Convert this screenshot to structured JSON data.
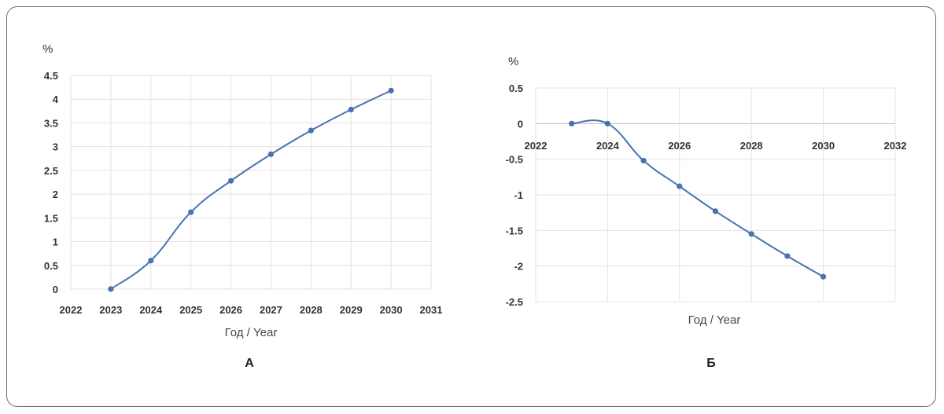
{
  "chart_data": [
    {
      "type": "line",
      "panel_label": "А",
      "ylabel": "%",
      "xlabel": "Год / Year",
      "xlim": [
        2022,
        2031
      ],
      "ylim": [
        0,
        4.5
      ],
      "x_ticks": [
        "2022",
        "2023",
        "2024",
        "2025",
        "2026",
        "2027",
        "2028",
        "2029",
        "2030",
        "2031"
      ],
      "y_ticks": [
        "4.5",
        "4",
        "3.5",
        "3",
        "2.5",
        "2",
        "1.5",
        "1",
        "0.5",
        "0"
      ],
      "grid": true,
      "line_color": "#4a72b0",
      "series": [
        {
          "x": [
            2023,
            2024,
            2025,
            2026,
            2027,
            2028,
            2029,
            2030
          ],
          "values": [
            0,
            0.6,
            1.62,
            2.28,
            2.84,
            3.34,
            3.78,
            4.18
          ]
        }
      ]
    },
    {
      "type": "line",
      "panel_label": "Б",
      "ylabel": "%",
      "xlabel": "Год / Year",
      "xlim": [
        2022,
        2032
      ],
      "ylim": [
        -2.5,
        0.5
      ],
      "x_ticks": [
        "2022",
        "2024",
        "2026",
        "2028",
        "2030",
        "2032"
      ],
      "y_ticks": [
        "0.5",
        "0",
        "-0.5",
        "-1",
        "-1.5",
        "-2",
        "-2.5"
      ],
      "grid": true,
      "line_color": "#4a72b0",
      "series": [
        {
          "x": [
            2023,
            2024,
            2025,
            2026,
            2027,
            2028,
            2029,
            2030
          ],
          "values": [
            0,
            0,
            -0.52,
            -0.88,
            -1.23,
            -1.55,
            -1.86,
            -2.15
          ]
        }
      ]
    }
  ]
}
